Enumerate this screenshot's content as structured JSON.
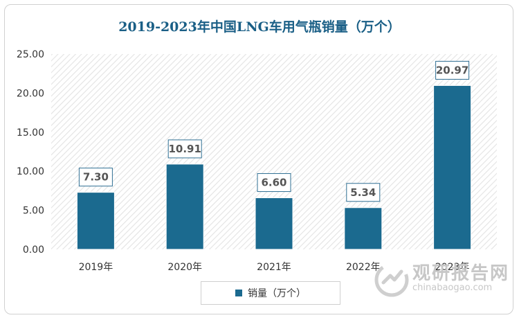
{
  "chart_data": {
    "type": "bar",
    "title": "2019-2023年中国LNG车用气瓶销量（万个）",
    "categories": [
      "2019年",
      "2020年",
      "2021年",
      "2022年",
      "2023年"
    ],
    "series": [
      {
        "name": "销量（万个）",
        "values": [
          7.3,
          10.91,
          6.6,
          5.34,
          20.97
        ],
        "color": "#1b6a8f"
      }
    ],
    "data_labels": [
      "7.30",
      "10.91",
      "6.60",
      "5.34",
      "20.97"
    ],
    "yticks": [
      "0.00",
      "5.00",
      "10.00",
      "15.00",
      "20.00",
      "25.00"
    ],
    "ylim": [
      0,
      25
    ],
    "xlabel": "",
    "ylabel": "",
    "legend_position": "bottom",
    "grid": false
  },
  "watermark": {
    "text": "观研报告网",
    "url": "chinabaogao.com",
    "logo_icon": "chinabaogao-logo-icon"
  }
}
